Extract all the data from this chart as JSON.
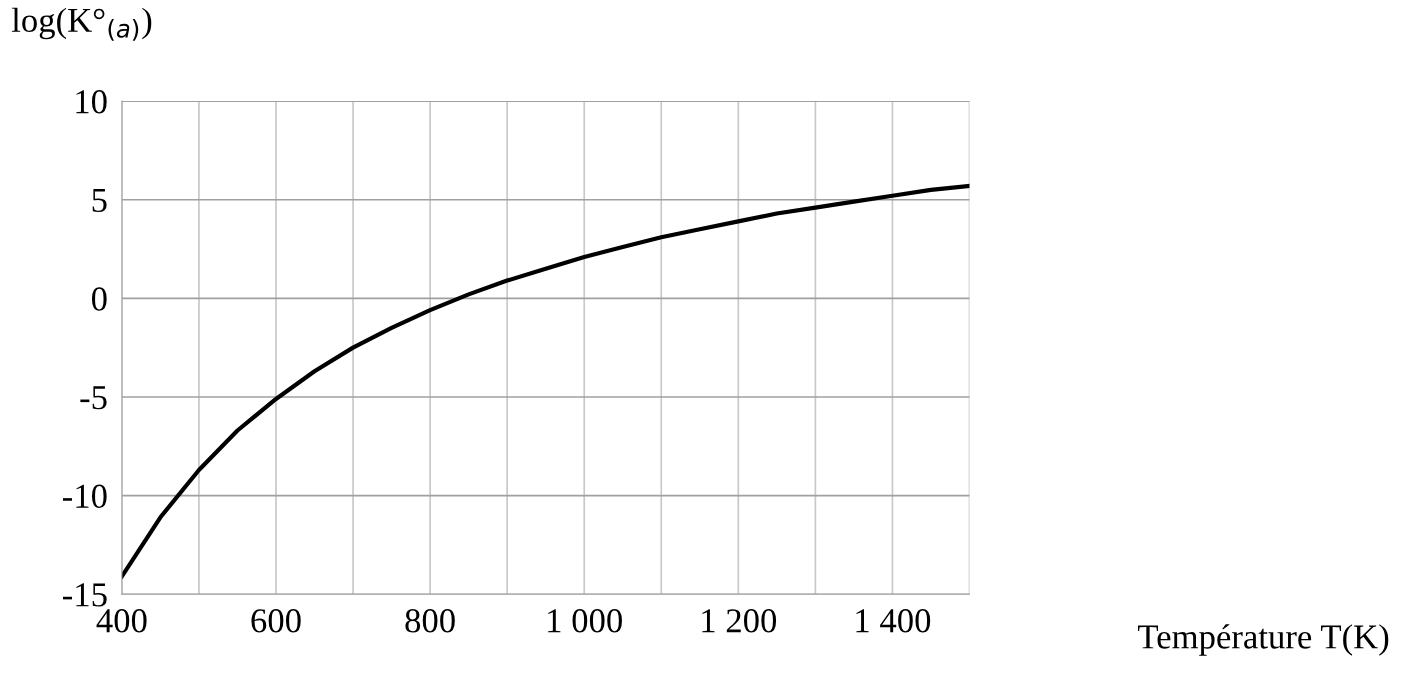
{
  "chart_data": {
    "type": "line",
    "ylabel": "log(K°$_{(a)}$)",
    "xlabel": "Température T(K)",
    "x": [
      400,
      450,
      500,
      550,
      600,
      650,
      700,
      750,
      800,
      850,
      900,
      950,
      1000,
      1050,
      1100,
      1150,
      1200,
      1250,
      1300,
      1350,
      1400,
      1450,
      1500
    ],
    "series": [
      {
        "color": "#000000",
        "values": [
          -14.1,
          -11.1,
          -8.7,
          -6.7,
          -5.1,
          -3.7,
          -2.5,
          -1.5,
          -0.6,
          0.2,
          0.9,
          1.5,
          2.1,
          2.6,
          3.1,
          3.5,
          3.9,
          4.3,
          4.6,
          4.9,
          5.2,
          5.5,
          5.7
        ]
      }
    ],
    "xlim": [
      400,
      1500
    ],
    "ylim": [
      -15,
      10
    ],
    "xticks": [
      400,
      600,
      800,
      {
        "value": 1000,
        "label": "1 000"
      },
      {
        "value": 1200,
        "label": "1 200"
      },
      {
        "value": 1400,
        "label": "1 400"
      }
    ],
    "yticks": [
      -15,
      -10,
      -5,
      0,
      5,
      10
    ],
    "grid": true,
    "marker": "none",
    "line_style": "solid",
    "legend": false
  }
}
